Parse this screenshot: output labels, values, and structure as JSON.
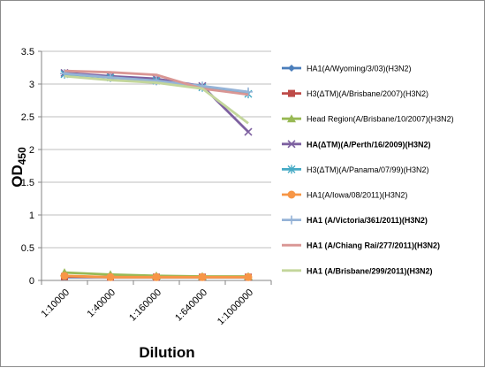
{
  "chart_data": {
    "type": "line",
    "title": "",
    "xlabel": "Dilution",
    "ylabel": "OD",
    "ylabel_subscript": "450",
    "categories": [
      "1:10000",
      "1:40000",
      "1:160000",
      "1:640000",
      "1:1000000"
    ],
    "ylim": [
      0,
      3.5
    ],
    "yticks": [
      "0",
      "0.5",
      "1",
      "1.5",
      "2",
      "2.5",
      "3",
      "3.5"
    ],
    "grid": "horizontal",
    "legend_position": "right",
    "series": [
      {
        "name": "HA1(A/Wyoming/3/03)(H3N2)",
        "color": "#4a7ebb",
        "marker": "diamond",
        "bold": false,
        "values": [
          0.05,
          0.05,
          0.05,
          0.05,
          0.05
        ]
      },
      {
        "name": "H3(ΔTM)(A/Brisbane/2007)(H3N2)",
        "color": "#be4b48",
        "marker": "square",
        "bold": false,
        "values": [
          0.06,
          0.05,
          0.05,
          0.05,
          0.05
        ]
      },
      {
        "name": "Head Region(A/Brisbane/10/2007)(H3N2)",
        "color": "#98b954",
        "marker": "triangle",
        "bold": false,
        "values": [
          0.12,
          0.09,
          0.07,
          0.06,
          0.06
        ]
      },
      {
        "name": "HA(ΔTM)(A/Perth/16/2009)(H3N2)",
        "color": "#7d60a0",
        "marker": "x",
        "bold": true,
        "values": [
          3.17,
          3.12,
          3.08,
          2.97,
          2.27
        ]
      },
      {
        "name": "H3(ΔTM)(A/Panama/07/99)(H3N2)",
        "color": "#46aac5",
        "marker": "star",
        "bold": false,
        "values": [
          3.15,
          3.1,
          3.05,
          2.95,
          2.85
        ]
      },
      {
        "name": "HA1(A/Iowa/08/2011)(H3N2)",
        "color": "#f79646",
        "marker": "circle",
        "bold": false,
        "values": [
          0.07,
          0.05,
          0.05,
          0.05,
          0.05
        ]
      },
      {
        "name": "HA1 (A/Victoria/361/2011)(H3N2)",
        "color": "#95b3d7",
        "marker": "plus",
        "bold": true,
        "values": [
          3.16,
          3.1,
          3.05,
          2.97,
          2.88
        ]
      },
      {
        "name": "HA1 (A/Chiang Rai/277/2011)(H3N2)",
        "color": "#d99694",
        "marker": "none",
        "bold": true,
        "values": [
          3.2,
          3.18,
          3.14,
          2.93,
          2.84
        ]
      },
      {
        "name": "HA1 (A/Brisbane/299/2011)(H3N2)",
        "color": "#c3d69b",
        "marker": "none",
        "bold": true,
        "values": [
          3.12,
          3.06,
          3.02,
          2.93,
          2.4
        ]
      }
    ]
  }
}
